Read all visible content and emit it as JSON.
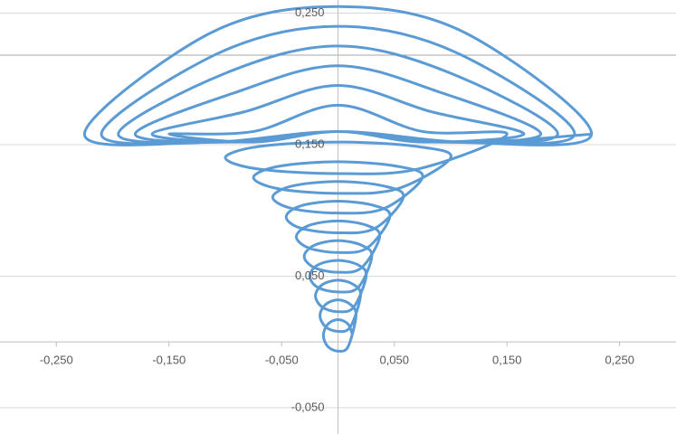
{
  "chart_data": {
    "type": "line",
    "color": "#5b9bd5",
    "xlim": [
      -0.3,
      0.3
    ],
    "ylim": [
      -0.07,
      0.26
    ],
    "xticks": [
      {
        "value": -0.25,
        "label": "-0,250"
      },
      {
        "value": -0.15,
        "label": "-0,150"
      },
      {
        "value": -0.05,
        "label": "-0,050"
      },
      {
        "value": 0.05,
        "label": "0,050"
      },
      {
        "value": 0.15,
        "label": "0,150"
      },
      {
        "value": 0.25,
        "label": "0,250"
      }
    ],
    "yticks": [
      {
        "value": -0.05,
        "label": "-0,050"
      },
      {
        "value": 0.05,
        "label": "0,050"
      },
      {
        "value": 0.15,
        "label": "0,150"
      },
      {
        "value": 0.25,
        "label": "0,250"
      }
    ],
    "grid": true,
    "x": [
      0.013,
      0.009,
      0,
      -0.009,
      -0.013,
      -0.009,
      0,
      0.009,
      0.016,
      0.011,
      0,
      -0.011,
      -0.016,
      -0.011,
      0,
      0.011,
      0.02,
      0.014,
      0,
      -0.014,
      -0.02,
      -0.014,
      0,
      0.014,
      0.025,
      0.018,
      0,
      -0.018,
      -0.025,
      -0.018,
      0,
      0.018,
      0.03,
      0.021,
      0,
      -0.021,
      -0.03,
      -0.021,
      0,
      0.021,
      0.037,
      0.026,
      0,
      -0.026,
      -0.037,
      -0.026,
      0,
      0.026,
      0.046,
      0.033,
      0,
      -0.033,
      -0.046,
      -0.033,
      0,
      0.033,
      0.058,
      0.041,
      0,
      -0.041,
      -0.058,
      -0.041,
      0,
      0.041,
      0.075,
      0.053,
      0,
      -0.053,
      -0.075,
      -0.053,
      0,
      0.053,
      0.1,
      0.071,
      0,
      -0.071,
      -0.1,
      -0.071,
      0,
      0.071,
      0.15,
      0.075,
      0,
      -0.075,
      -0.15,
      -0.075,
      0,
      0.075,
      0.165,
      0.083,
      0,
      -0.083,
      -0.165,
      -0.083,
      0,
      0.083,
      0.18,
      0.09,
      0,
      -0.09,
      -0.18,
      -0.09,
      0,
      0.09,
      0.195,
      0.098,
      0,
      -0.098,
      -0.195,
      -0.098,
      0,
      0.098,
      0.21,
      0.105,
      0,
      -0.105,
      -0.21,
      -0.105,
      0,
      0.105,
      0.225,
      0.113,
      0,
      -0.113,
      -0.225,
      -0.113,
      0,
      0.113,
      0.225
    ],
    "values": [
      0.005,
      0.0135,
      0.017,
      0.0135,
      0.005,
      -0.0035,
      -0.007,
      -0.0035,
      0.02,
      0.0285,
      0.032,
      0.0285,
      0.02,
      0.0115,
      0.008,
      0.0115,
      0.035,
      0.0435,
      0.047,
      0.0435,
      0.035,
      0.0265,
      0.023,
      0.0265,
      0.05,
      0.0585,
      0.062,
      0.0585,
      0.05,
      0.0415,
      0.038,
      0.0415,
      0.065,
      0.0735,
      0.077,
      0.0735,
      0.065,
      0.0565,
      0.053,
      0.0565,
      0.08,
      0.0885,
      0.092,
      0.0885,
      0.08,
      0.0715,
      0.068,
      0.0715,
      0.095,
      0.1035,
      0.107,
      0.1035,
      0.095,
      0.0865,
      0.083,
      0.0865,
      0.11,
      0.1185,
      0.122,
      0.1185,
      0.11,
      0.1015,
      0.098,
      0.1015,
      0.125,
      0.1335,
      0.137,
      0.1335,
      0.125,
      0.1165,
      0.113,
      0.1165,
      0.14,
      0.1485,
      0.152,
      0.1485,
      0.14,
      0.1315,
      0.128,
      0.1315,
      0.158,
      0.16,
      0.18,
      0.16,
      0.158,
      0.152,
      0.16,
      0.152,
      0.158,
      0.175,
      0.195,
      0.175,
      0.158,
      0.152,
      0.16,
      0.152,
      0.158,
      0.19,
      0.21,
      0.19,
      0.158,
      0.152,
      0.16,
      0.152,
      0.158,
      0.205,
      0.225,
      0.205,
      0.158,
      0.152,
      0.16,
      0.152,
      0.158,
      0.22,
      0.24,
      0.22,
      0.158,
      0.152,
      0.16,
      0.152,
      0.158,
      0.235,
      0.255,
      0.235,
      0.158,
      0.152,
      0.16,
      0.152,
      0.158
    ]
  }
}
